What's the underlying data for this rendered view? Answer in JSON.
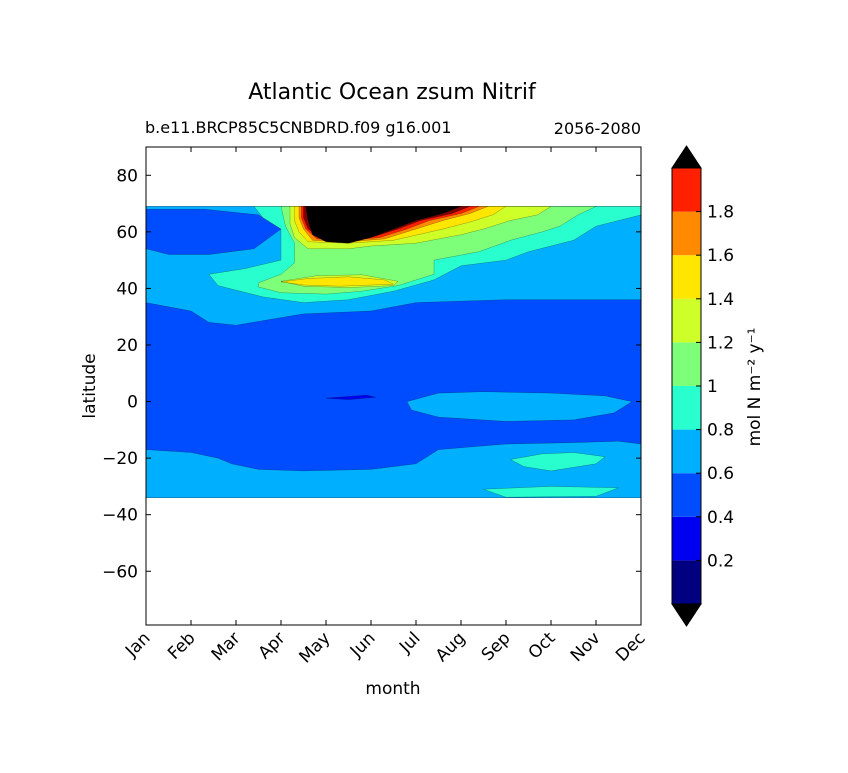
{
  "chart_data": {
    "type": "contourf",
    "title": "Atlantic Ocean zsum Nitrif",
    "subtitle_left": "b.e11.BRCP85C5CNBDRD.f09 g16.001",
    "subtitle_right": "2056-2080",
    "xlabel": "month",
    "ylabel": "latitude",
    "x_ticks": [
      "Jan",
      "Feb",
      "Mar",
      "Apr",
      "May",
      "Jun",
      "Jul",
      "Aug",
      "Sep",
      "Oct",
      "Nov",
      "Dec"
    ],
    "xlim": [
      0,
      11
    ],
    "y_ticks": [
      80,
      60,
      40,
      20,
      0,
      -20,
      -40,
      -60
    ],
    "ylim": [
      -79,
      90
    ],
    "data_extent_lat": [
      -34,
      69
    ],
    "colorbar": {
      "label": "mol N m⁻² y⁻¹",
      "levels": [
        0,
        0.2,
        0.4,
        0.6,
        0.8,
        1.0,
        1.2,
        1.4,
        1.6,
        1.8,
        2.0
      ],
      "tick_labels": [
        "0.2",
        "0.4",
        "0.6",
        "0.8",
        "1",
        "1.2",
        "1.4",
        "1.6",
        "1.8"
      ],
      "colors": [
        "#000080",
        "#0000f1",
        "#004cff",
        "#00b0ff",
        "#29ffce",
        "#7dff7a",
        "#ceff29",
        "#ffe600",
        "#ff8a00",
        "#ff2000",
        "#800000"
      ],
      "under_color": "#000000",
      "over_color": "#000000"
    },
    "regions": [
      {
        "name": "background",
        "level": "0.4-0.6",
        "color": "#004cff",
        "points": [
          [
            0,
            69
          ],
          [
            11,
            69
          ],
          [
            11,
            -34
          ],
          [
            0,
            -34
          ]
        ]
      },
      {
        "name": "north-0.6-0.8",
        "level": "0.6-0.8",
        "color": "#00b0ff",
        "points": [
          [
            0,
            69
          ],
          [
            11,
            69
          ],
          [
            11,
            36
          ],
          [
            8,
            36
          ],
          [
            6,
            35
          ],
          [
            5,
            32
          ],
          [
            3.5,
            31
          ],
          [
            2,
            27
          ],
          [
            1.4,
            28
          ],
          [
            1,
            32
          ],
          [
            0,
            35
          ]
        ]
      },
      {
        "name": "north-0.4-0.6-patch",
        "level": "0.4-0.6",
        "color": "#004cff",
        "points": [
          [
            0,
            68
          ],
          [
            1.3,
            68
          ],
          [
            2.5,
            66
          ],
          [
            3,
            61
          ],
          [
            2.4,
            54
          ],
          [
            1.4,
            52
          ],
          [
            0.5,
            52
          ],
          [
            0,
            54
          ]
        ]
      },
      {
        "name": "north-0.8-1.0",
        "level": "0.8-1.0",
        "color": "#29ffce",
        "points": [
          [
            2.4,
            69
          ],
          [
            11,
            69
          ],
          [
            11,
            66
          ],
          [
            10,
            62
          ],
          [
            9.5,
            57
          ],
          [
            8.5,
            53
          ],
          [
            8,
            50
          ],
          [
            7,
            48
          ],
          [
            6.4,
            43
          ],
          [
            5.5,
            39
          ],
          [
            4.5,
            36
          ],
          [
            3.5,
            35
          ],
          [
            2.6,
            37
          ],
          [
            1.6,
            41
          ],
          [
            1.4,
            45
          ],
          [
            2.2,
            47
          ],
          [
            3,
            50
          ],
          [
            3,
            61
          ],
          [
            2.6,
            65
          ]
        ]
      },
      {
        "name": "north-1.0-1.2",
        "level": "1.0-1.2",
        "color": "#7dff7a",
        "points": [
          [
            3,
            69
          ],
          [
            10,
            69
          ],
          [
            9.6,
            66
          ],
          [
            9.2,
            62
          ],
          [
            8.8,
            60
          ],
          [
            8.1,
            57
          ],
          [
            7.4,
            53
          ],
          [
            6.4,
            50
          ],
          [
            6.4,
            45
          ],
          [
            5.6,
            41
          ],
          [
            4.8,
            39
          ],
          [
            4,
            38
          ],
          [
            3,
            38.5
          ],
          [
            2.5,
            40.5
          ],
          [
            2.5,
            42
          ],
          [
            3,
            45
          ],
          [
            3.3,
            49
          ],
          [
            3.3,
            56
          ],
          [
            3.1,
            62
          ]
        ]
      },
      {
        "name": "north-1.2-1.4-north",
        "level": "1.2-1.4",
        "color": "#ceff29",
        "points": [
          [
            3.2,
            69
          ],
          [
            9,
            69
          ],
          [
            8.7,
            66
          ],
          [
            8.1,
            64
          ],
          [
            7.5,
            61
          ],
          [
            7,
            59
          ],
          [
            6,
            56
          ],
          [
            5,
            55
          ],
          [
            4.5,
            54
          ],
          [
            3.6,
            54
          ],
          [
            3.3,
            58
          ],
          [
            3.2,
            63
          ]
        ]
      },
      {
        "name": "north-1.2-1.4-south",
        "level": "1.2-1.4",
        "color": "#ceff29",
        "points": [
          [
            3,
            42.5
          ],
          [
            3.5,
            40.8
          ],
          [
            4.5,
            40.3
          ],
          [
            5.5,
            41
          ],
          [
            5.6,
            42.5
          ],
          [
            4.8,
            44.8
          ],
          [
            3.8,
            44.5
          ]
        ]
      },
      {
        "name": "north-1.4-1.6-south",
        "level": "1.4-1.6",
        "color": "#ffe600",
        "points": [
          [
            3,
            42.3
          ],
          [
            3.5,
            41.2
          ],
          [
            4.3,
            40.8
          ],
          [
            5.5,
            41.5
          ],
          [
            5.3,
            43
          ],
          [
            4.5,
            44.1
          ],
          [
            3.6,
            43.5
          ]
        ]
      },
      {
        "name": "north-1.4-1.6-north",
        "level": "1.4-1.6",
        "color": "#ffe600",
        "points": [
          [
            3.3,
            69
          ],
          [
            8,
            69
          ],
          [
            7.7,
            66
          ],
          [
            7.2,
            63.5
          ],
          [
            6.6,
            61
          ],
          [
            5.5,
            57
          ],
          [
            4.5,
            56
          ],
          [
            3.6,
            56.5
          ],
          [
            3.4,
            60
          ],
          [
            3.3,
            64
          ]
        ]
      },
      {
        "name": "north-1.6-1.8",
        "level": "1.6-1.8",
        "color": "#ff8a00",
        "points": [
          [
            3.4,
            69
          ],
          [
            7.6,
            69
          ],
          [
            7.2,
            66.5
          ],
          [
            6.6,
            64
          ],
          [
            6,
            61
          ],
          [
            5.3,
            57.5
          ],
          [
            4.5,
            56.5
          ],
          [
            3.7,
            57
          ],
          [
            3.5,
            61
          ],
          [
            3.4,
            65
          ]
        ]
      },
      {
        "name": "north-1.8-2.0",
        "level": "1.8-2.0",
        "color": "#ff2000",
        "points": [
          [
            3.45,
            69
          ],
          [
            7.4,
            69
          ],
          [
            7,
            66.5
          ],
          [
            6.3,
            64
          ],
          [
            5.8,
            61
          ],
          [
            5.2,
            58
          ],
          [
            4.5,
            57
          ],
          [
            3.8,
            57.5
          ],
          [
            3.55,
            61
          ],
          [
            3.45,
            65
          ]
        ]
      },
      {
        "name": "north-over-2.0-dark",
        "level": "1.8-2.0",
        "color": "#800000",
        "points": [
          [
            3.5,
            69
          ],
          [
            7.2,
            69
          ],
          [
            6.8,
            66.5
          ],
          [
            6.1,
            64
          ],
          [
            5.6,
            61
          ],
          [
            5.1,
            58.5
          ],
          [
            4.5,
            57.5
          ],
          [
            3.9,
            58
          ],
          [
            3.6,
            61
          ],
          [
            3.5,
            65
          ]
        ]
      },
      {
        "name": "north-over",
        "level": ">2.0",
        "color": "#000000",
        "points": [
          [
            3.55,
            69
          ],
          [
            7.0,
            69
          ],
          [
            6.6,
            66.5
          ],
          [
            6.0,
            64
          ],
          [
            5.5,
            61
          ],
          [
            5.0,
            58
          ],
          [
            4.5,
            56
          ],
          [
            4.0,
            56.5
          ],
          [
            3.7,
            59
          ],
          [
            3.6,
            64
          ]
        ]
      },
      {
        "name": "equator-0.6-0.8",
        "level": "0.6-0.8",
        "color": "#00b0ff",
        "points": [
          [
            5.8,
            0
          ],
          [
            6.5,
            3
          ],
          [
            7.5,
            3.5
          ],
          [
            9,
            3
          ],
          [
            10.2,
            2
          ],
          [
            10.8,
            0
          ],
          [
            10.4,
            -4
          ],
          [
            9.5,
            -6.5
          ],
          [
            8,
            -7
          ],
          [
            6.5,
            -5.5
          ],
          [
            5.9,
            -3
          ]
        ]
      },
      {
        "name": "equator-0.2-0.4",
        "level": "0.2-0.4",
        "color": "#0000f1",
        "points": [
          [
            4.0,
            1.2
          ],
          [
            4.9,
            2.3
          ],
          [
            5.1,
            1.5
          ],
          [
            4.5,
            0.7
          ]
        ]
      },
      {
        "name": "south-0.6-0.8",
        "level": "0.6-0.8",
        "color": "#00b0ff",
        "points": [
          [
            0,
            -17
          ],
          [
            1,
            -18
          ],
          [
            1.6,
            -20
          ],
          [
            1.9,
            -22
          ],
          [
            2.5,
            -24
          ],
          [
            3.5,
            -24.5
          ],
          [
            5,
            -24
          ],
          [
            6,
            -22
          ],
          [
            6.5,
            -17
          ],
          [
            8,
            -15
          ],
          [
            9.5,
            -14.5
          ],
          [
            10.5,
            -14
          ],
          [
            11,
            -15
          ],
          [
            11,
            -34
          ],
          [
            0,
            -34
          ]
        ]
      },
      {
        "name": "south-0.8-1.0",
        "level": "0.8-1.0",
        "color": "#29ffce",
        "points": [
          [
            8.1,
            -20.5
          ],
          [
            8.8,
            -18.5
          ],
          [
            9.5,
            -18
          ],
          [
            10.2,
            -19.5
          ],
          [
            10.0,
            -22
          ],
          [
            9.0,
            -24.5
          ],
          [
            8.4,
            -23
          ]
        ]
      },
      {
        "name": "south-0.8-1.0-small",
        "level": "0.8-1.0",
        "color": "#29ffce",
        "points": [
          [
            7.5,
            -31
          ],
          [
            9,
            -30
          ],
          [
            10.5,
            -30.5
          ],
          [
            10,
            -33.5
          ],
          [
            8,
            -33.8
          ]
        ]
      }
    ]
  }
}
